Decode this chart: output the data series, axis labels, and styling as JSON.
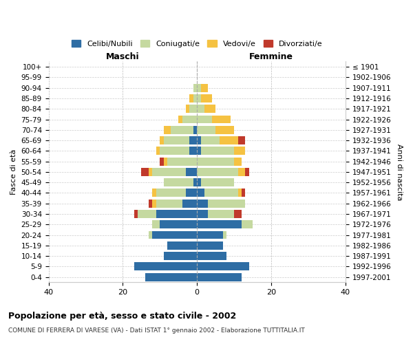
{
  "age_groups": [
    "0-4",
    "5-9",
    "10-14",
    "15-19",
    "20-24",
    "25-29",
    "30-34",
    "35-39",
    "40-44",
    "45-49",
    "50-54",
    "55-59",
    "60-64",
    "65-69",
    "70-74",
    "75-79",
    "80-84",
    "85-89",
    "90-94",
    "95-99",
    "100+"
  ],
  "birth_years": [
    "1997-2001",
    "1992-1996",
    "1987-1991",
    "1982-1986",
    "1977-1981",
    "1972-1976",
    "1967-1971",
    "1962-1966",
    "1957-1961",
    "1952-1956",
    "1947-1951",
    "1942-1946",
    "1937-1941",
    "1932-1936",
    "1927-1931",
    "1922-1926",
    "1917-1921",
    "1912-1916",
    "1907-1911",
    "1902-1906",
    "≤ 1901"
  ],
  "males": {
    "celibi": [
      14,
      17,
      9,
      8,
      12,
      10,
      11,
      4,
      3,
      1,
      3,
      0,
      2,
      2,
      1,
      0,
      0,
      0,
      0,
      0,
      0
    ],
    "coniugati": [
      0,
      0,
      0,
      0,
      1,
      2,
      5,
      7,
      8,
      8,
      9,
      8,
      8,
      7,
      6,
      4,
      2,
      1,
      1,
      0,
      0
    ],
    "vedovi": [
      0,
      0,
      0,
      0,
      0,
      0,
      0,
      1,
      1,
      0,
      1,
      1,
      1,
      1,
      2,
      1,
      1,
      1,
      0,
      0,
      0
    ],
    "divorziati": [
      0,
      0,
      0,
      0,
      0,
      0,
      1,
      1,
      0,
      0,
      2,
      1,
      0,
      0,
      0,
      0,
      0,
      0,
      0,
      0,
      0
    ]
  },
  "females": {
    "nubili": [
      12,
      14,
      8,
      7,
      7,
      12,
      3,
      3,
      2,
      1,
      0,
      0,
      1,
      1,
      0,
      0,
      0,
      0,
      0,
      0,
      0
    ],
    "coniugate": [
      0,
      0,
      0,
      0,
      1,
      3,
      7,
      10,
      9,
      9,
      11,
      10,
      9,
      5,
      5,
      4,
      2,
      1,
      1,
      0,
      0
    ],
    "vedove": [
      0,
      0,
      0,
      0,
      0,
      0,
      0,
      0,
      1,
      0,
      2,
      2,
      3,
      5,
      5,
      5,
      3,
      3,
      2,
      0,
      0
    ],
    "divorziate": [
      0,
      0,
      0,
      0,
      0,
      0,
      2,
      0,
      1,
      0,
      1,
      0,
      0,
      2,
      0,
      0,
      0,
      0,
      0,
      0,
      0
    ]
  },
  "colors": {
    "celibi_nubili": "#2e6da4",
    "coniugati": "#c5d9a0",
    "vedovi": "#f5c242",
    "divorziati": "#c0392b"
  },
  "xlim": 40,
  "title": "Popolazione per età, sesso e stato civile - 2002",
  "subtitle": "COMUNE DI FERRERA DI VARESE (VA) - Dati ISTAT 1° gennaio 2002 - Elaborazione TUTTITALIA.IT",
  "ylabel_left": "Fasce di età",
  "ylabel_right": "Anni di nascita",
  "xlabel_left": "Maschi",
  "xlabel_right": "Femmine"
}
